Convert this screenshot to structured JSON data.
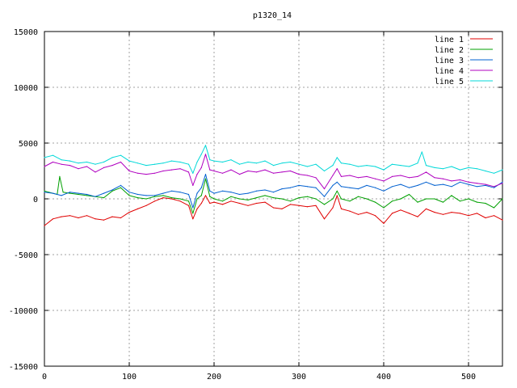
{
  "chart_data": {
    "type": "line",
    "title": "p1320_14",
    "xlabel": "",
    "ylabel": "",
    "xlim": [
      0,
      540
    ],
    "ylim": [
      -15000,
      15000
    ],
    "xticks": [
      0,
      100,
      200,
      300,
      400,
      500
    ],
    "yticks": [
      -15000,
      -10000,
      -5000,
      0,
      5000,
      10000,
      15000
    ],
    "grid": true,
    "legend_position": "top-right",
    "series": [
      {
        "name": "line 1",
        "color": "#e00000",
        "x": [
          0,
          10,
          20,
          30,
          40,
          50,
          60,
          70,
          80,
          90,
          100,
          110,
          120,
          130,
          140,
          150,
          160,
          170,
          175,
          180,
          185,
          190,
          195,
          200,
          210,
          220,
          230,
          240,
          250,
          260,
          270,
          280,
          290,
          300,
          310,
          320,
          330,
          340,
          345,
          350,
          360,
          370,
          380,
          390,
          400,
          410,
          420,
          430,
          440,
          450,
          460,
          470,
          480,
          490,
          500,
          510,
          520,
          530,
          540
        ],
        "y": [
          -2400,
          -1800,
          -1600,
          -1500,
          -1700,
          -1500,
          -1800,
          -1900,
          -1600,
          -1700,
          -1200,
          -900,
          -600,
          -200,
          100,
          0,
          -200,
          -600,
          -1800,
          -900,
          -400,
          300,
          -400,
          -300,
          -500,
          -200,
          -400,
          -600,
          -400,
          -300,
          -800,
          -900,
          -500,
          -600,
          -700,
          -600,
          -1800,
          -800,
          300,
          -900,
          -1100,
          -1400,
          -1200,
          -1500,
          -2200,
          -1300,
          -1000,
          -1300,
          -1600,
          -900,
          -1200,
          -1400,
          -1200,
          -1300,
          -1500,
          -1300,
          -1700,
          -1500,
          -1900
        ]
      },
      {
        "name": "line 2",
        "color": "#00a000",
        "x": [
          0,
          10,
          15,
          18,
          22,
          30,
          40,
          50,
          60,
          70,
          80,
          90,
          100,
          110,
          120,
          130,
          140,
          150,
          160,
          170,
          175,
          180,
          185,
          190,
          195,
          200,
          210,
          220,
          230,
          240,
          250,
          260,
          270,
          280,
          290,
          300,
          310,
          320,
          330,
          340,
          345,
          350,
          360,
          370,
          380,
          390,
          400,
          410,
          420,
          430,
          440,
          450,
          460,
          470,
          480,
          490,
          500,
          510,
          520,
          530,
          540
        ],
        "y": [
          700,
          500,
          400,
          2000,
          600,
          500,
          400,
          300,
          200,
          100,
          700,
          1000,
          300,
          100,
          0,
          200,
          300,
          100,
          0,
          -200,
          -1300,
          0,
          300,
          1800,
          200,
          0,
          -200,
          200,
          0,
          -100,
          100,
          300,
          100,
          0,
          -200,
          100,
          200,
          0,
          -500,
          0,
          700,
          0,
          -200,
          200,
          0,
          -300,
          -800,
          -200,
          0,
          400,
          -300,
          0,
          0,
          -300,
          300,
          -200,
          0,
          -300,
          -400,
          -800,
          0
        ]
      },
      {
        "name": "line 3",
        "color": "#0060d0",
        "x": [
          0,
          10,
          20,
          30,
          40,
          50,
          60,
          70,
          80,
          90,
          100,
          110,
          120,
          130,
          140,
          150,
          160,
          170,
          175,
          180,
          185,
          190,
          195,
          200,
          210,
          220,
          230,
          240,
          250,
          260,
          270,
          280,
          290,
          300,
          310,
          320,
          330,
          340,
          345,
          350,
          360,
          370,
          380,
          390,
          400,
          410,
          420,
          430,
          440,
          450,
          460,
          470,
          480,
          490,
          500,
          510,
          520,
          530,
          540
        ],
        "y": [
          600,
          500,
          300,
          600,
          500,
          400,
          200,
          500,
          800,
          1200,
          600,
          400,
          300,
          300,
          500,
          700,
          600,
          400,
          -800,
          500,
          1000,
          2200,
          700,
          500,
          700,
          600,
          400,
          500,
          700,
          800,
          600,
          900,
          1000,
          1200,
          1100,
          1000,
          200,
          1200,
          1500,
          1100,
          1000,
          900,
          1200,
          1000,
          700,
          1100,
          1300,
          1000,
          1200,
          1500,
          1200,
          1300,
          1100,
          1500,
          1300,
          1100,
          1200,
          1000,
          1500
        ]
      },
      {
        "name": "line 4",
        "color": "#b000c0",
        "x": [
          0,
          10,
          20,
          30,
          40,
          50,
          60,
          70,
          80,
          90,
          100,
          110,
          120,
          130,
          140,
          150,
          160,
          170,
          175,
          180,
          185,
          190,
          195,
          200,
          210,
          220,
          230,
          240,
          250,
          260,
          270,
          280,
          290,
          300,
          310,
          320,
          330,
          340,
          345,
          350,
          360,
          370,
          380,
          390,
          400,
          410,
          420,
          430,
          440,
          450,
          460,
          470,
          480,
          490,
          500,
          510,
          520,
          530,
          540
        ],
        "y": [
          2900,
          3300,
          3100,
          3000,
          2700,
          2900,
          2400,
          2800,
          3000,
          3300,
          2500,
          2300,
          2200,
          2300,
          2500,
          2600,
          2700,
          2400,
          1200,
          2200,
          2800,
          4000,
          2600,
          2500,
          2300,
          2600,
          2200,
          2500,
          2400,
          2600,
          2300,
          2400,
          2500,
          2200,
          2100,
          1900,
          900,
          2100,
          2700,
          2000,
          2100,
          1900,
          2000,
          1800,
          1600,
          2000,
          2100,
          1900,
          2000,
          2400,
          1900,
          1800,
          1600,
          1700,
          1500,
          1400,
          1300,
          1100,
          1400
        ]
      },
      {
        "name": "line 5",
        "color": "#00d8d8",
        "x": [
          0,
          10,
          20,
          30,
          40,
          50,
          60,
          70,
          80,
          90,
          100,
          110,
          120,
          130,
          140,
          150,
          160,
          170,
          175,
          180,
          185,
          190,
          195,
          200,
          210,
          220,
          230,
          240,
          250,
          260,
          270,
          280,
          290,
          300,
          310,
          320,
          330,
          340,
          345,
          350,
          360,
          370,
          380,
          390,
          400,
          410,
          420,
          430,
          440,
          445,
          450,
          460,
          470,
          480,
          490,
          500,
          510,
          520,
          530,
          540
        ],
        "y": [
          3700,
          3900,
          3500,
          3400,
          3200,
          3300,
          3100,
          3300,
          3700,
          3900,
          3400,
          3200,
          3000,
          3100,
          3200,
          3400,
          3300,
          3100,
          2300,
          3300,
          4000,
          4800,
          3500,
          3400,
          3300,
          3500,
          3100,
          3300,
          3200,
          3400,
          3000,
          3200,
          3300,
          3100,
          2900,
          3100,
          2500,
          3000,
          3700,
          3200,
          3100,
          2900,
          3000,
          2900,
          2600,
          3100,
          3000,
          2900,
          3200,
          4200,
          3000,
          2800,
          2700,
          2900,
          2600,
          2800,
          2700,
          2500,
          2300,
          2600
        ]
      }
    ]
  }
}
